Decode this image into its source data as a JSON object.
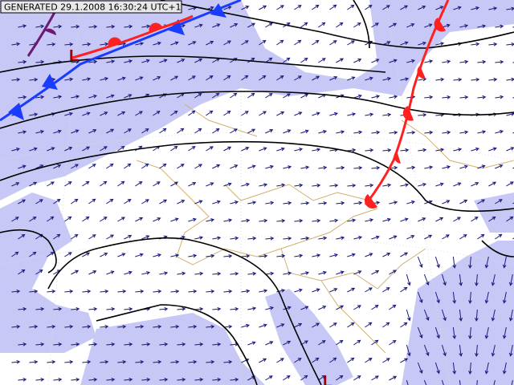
{
  "header": {
    "label": "GENERATED 29.1.2008 16:30:24 UTC+1"
  },
  "pressure_centers": [
    {
      "label": "L"
    },
    {
      "label": "L"
    }
  ]
}
